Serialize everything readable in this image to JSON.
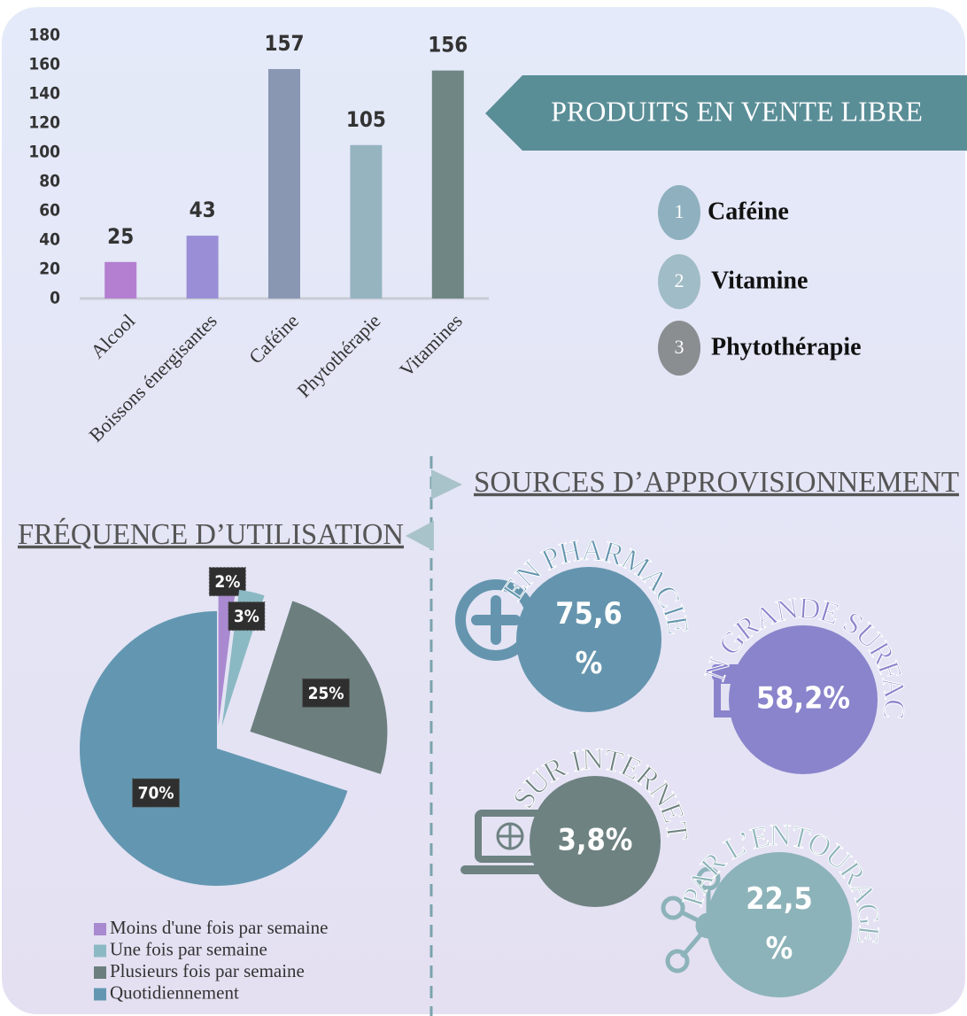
{
  "chart_data": [
    {
      "type": "bar",
      "categories": [
        "Alcool",
        "Boissons énergisantes",
        "Caféine",
        "Phytothérapie",
        "Vitamines"
      ],
      "values": [
        25,
        43,
        157,
        105,
        156
      ],
      "colors": [
        "#b47fd0",
        "#9a8fd6",
        "#8a97b3",
        "#96b3c0",
        "#6f8684"
      ],
      "ylim": [
        0,
        180
      ],
      "yticks": [
        0,
        20,
        40,
        60,
        80,
        100,
        120,
        140,
        160,
        180
      ]
    },
    {
      "type": "pie",
      "title": "FRÉQUENCE D’UTILISATION",
      "categories": [
        "Moins d'une fois par semaine",
        "Une fois par semaine",
        "Plusieurs fois par semaine",
        "Quotidiennement"
      ],
      "values": [
        2,
        3,
        25,
        70
      ],
      "value_labels": [
        "2%",
        "3%",
        "25%",
        "70%"
      ],
      "colors": [
        "#a98ad0",
        "#8bb9c3",
        "#6c7f7e",
        "#6397b1"
      ]
    }
  ],
  "ranking": {
    "title": "PRODUITS EN VENTE LIBRE",
    "items": [
      {
        "rank": 1,
        "label": "Caféine",
        "color": "#8fb0be"
      },
      {
        "rank": 2,
        "label": "Vitamine",
        "color": "#a0bcc6"
      },
      {
        "rank": 3,
        "label": "Phytothérapie",
        "color": "#8a8e90"
      }
    ]
  },
  "sources": {
    "title": "SOURCES D’APPROVISIONNEMENT",
    "items": [
      {
        "label": "EN PHARMACIE",
        "value": 75.6,
        "value_label": "75,6 %",
        "color": "#6595ae"
      },
      {
        "label": "EN GRANDE SURFACE",
        "value": 58.2,
        "value_label": "58,2%",
        "color": "#8a84cc"
      },
      {
        "label": "SUR INTERNET",
        "value": 3.8,
        "value_label": "3,8%",
        "color": "#6e8281"
      },
      {
        "label": "PAR L’ENTOURAGE",
        "value": 22.5,
        "value_label": "22,5 %",
        "color": "#8cb3b9"
      }
    ]
  }
}
